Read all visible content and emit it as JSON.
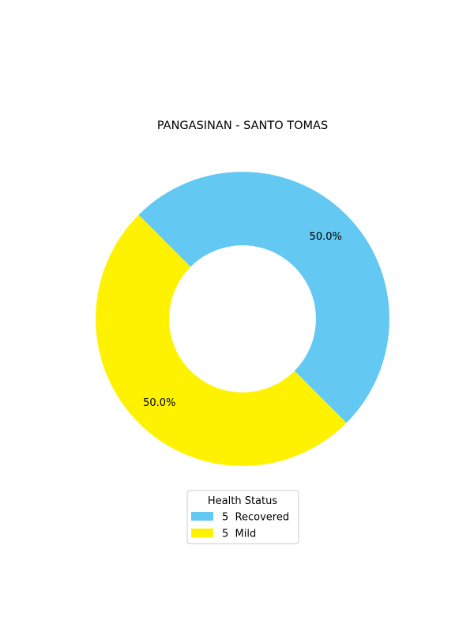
{
  "chart_data": {
    "type": "pie",
    "title": "PANGASINAN - SANTO TOMAS",
    "slices": [
      {
        "label": "5  Recovered",
        "value": 5,
        "pct_label": "50.0%",
        "color": "#63C8F2"
      },
      {
        "label": "5  Mild",
        "value": 5,
        "pct_label": "50.0%",
        "color": "#FFF200"
      }
    ],
    "legend_title": "Health Status",
    "legend_placement": "bottom-center",
    "donut": true
  }
}
